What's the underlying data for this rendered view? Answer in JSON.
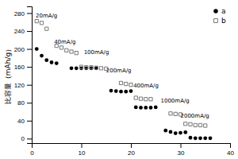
{
  "chart_data": {
    "type": "scatter",
    "ylabel": "比容量（mAh/g）",
    "xlim": [
      0,
      40
    ],
    "ylim": [
      -10,
      295
    ],
    "xticks": [
      0,
      10,
      20,
      30,
      40
    ],
    "yticks": [
      0,
      40,
      80,
      120,
      160,
      200,
      240,
      280
    ],
    "legend": "upper right",
    "series": [
      {
        "name": "a",
        "color": "black",
        "marker": "circle",
        "x": [
          1,
          2,
          3,
          4,
          5,
          8,
          9,
          10,
          11,
          12,
          13,
          16,
          17,
          18,
          19,
          20,
          21,
          22,
          23,
          24,
          25,
          27,
          28,
          29,
          30,
          31,
          32,
          33,
          34,
          35,
          36
        ],
        "values": [
          200,
          185,
          175,
          170,
          168,
          157,
          157,
          157,
          157,
          157,
          157,
          107,
          106,
          105,
          105,
          106,
          70,
          69,
          69,
          69,
          70,
          18,
          15,
          12,
          13,
          14,
          2,
          1,
          1,
          1,
          1
        ]
      },
      {
        "name": "b",
        "color": "#777777",
        "marker": "open-square",
        "x": [
          1,
          2,
          3,
          5,
          6,
          7,
          8,
          9,
          10,
          11,
          12,
          13,
          14,
          15,
          18,
          19,
          20,
          21,
          22,
          23,
          24,
          28,
          29,
          30,
          31,
          32,
          33,
          34,
          35
        ],
        "values": [
          262,
          258,
          245,
          207,
          203,
          197,
          194,
          191,
          160,
          159,
          159,
          158,
          157,
          156,
          124,
          122,
          120,
          91,
          89,
          88,
          88,
          56,
          55,
          54,
          33,
          32,
          30,
          30,
          29
        ]
      }
    ],
    "annotations": [
      {
        "text": "20mA/g",
        "x": 0.8,
        "y": 270
      },
      {
        "text": "40mA/g",
        "x": 4.5,
        "y": 212
      },
      {
        "text": "100mA/g",
        "x": 10.5,
        "y": 188
      },
      {
        "text": "200mA/g",
        "x": 15.0,
        "y": 148
      },
      {
        "text": "400mA/g",
        "x": 20.5,
        "y": 114
      },
      {
        "text": "1000mA/g",
        "x": 26.0,
        "y": 80
      },
      {
        "text": "2000mA/g",
        "x": 30.0,
        "y": 46
      }
    ]
  }
}
